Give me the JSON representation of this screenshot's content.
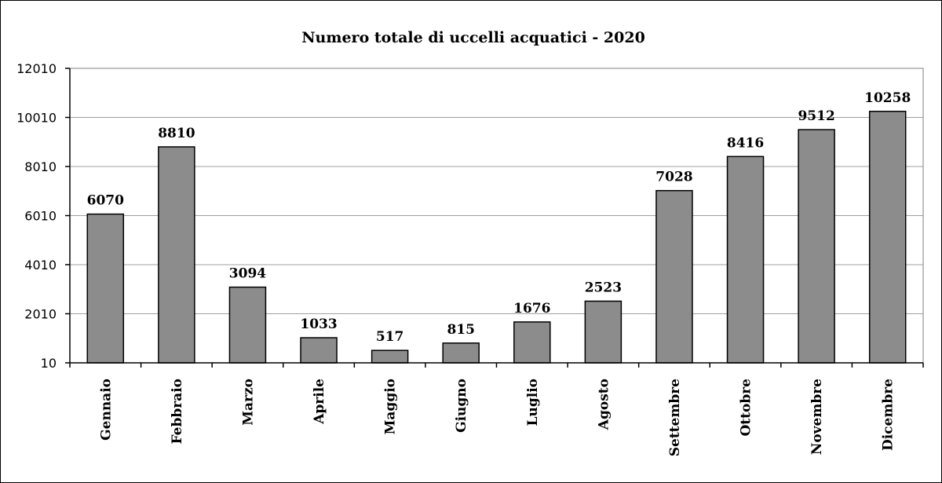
{
  "chart_data": {
    "type": "bar",
    "title": "Numero totale di uccelli acquatici - 2020",
    "xlabel": "",
    "ylabel": "",
    "categories": [
      "Gennaio",
      "Febbraio",
      "Marzo",
      "Aprile",
      "Maggio",
      "Giugno",
      "Luglio",
      "Agosto",
      "Settembre",
      "Ottobre",
      "Novembre",
      "Dicembre"
    ],
    "values": [
      6070,
      8810,
      3094,
      1033,
      517,
      815,
      1676,
      2523,
      7028,
      8416,
      9512,
      10258
    ],
    "data_labels": [
      "6070",
      "8810",
      "3094",
      "1033",
      "517",
      "815",
      "1676",
      "2523",
      "7028",
      "8416",
      "9512",
      "10258"
    ],
    "ylim": [
      10,
      12010
    ],
    "yticks": [
      10,
      2010,
      4010,
      6010,
      8010,
      10010,
      12010
    ],
    "ytick_labels": [
      "10",
      "2010",
      "4010",
      "6010",
      "8010",
      "10010",
      "12010"
    ],
    "grid": true,
    "legend": "none",
    "colors": {
      "bar_fill": "#8c8c8c",
      "bar_stroke": "#000000",
      "gridline": "#a0a0a0",
      "axis": "#000000",
      "background": "#ffffff"
    }
  }
}
